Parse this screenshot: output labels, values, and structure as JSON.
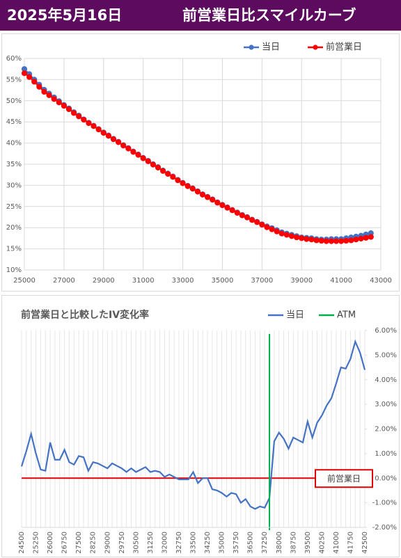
{
  "header": {
    "date": "2025年5月16日",
    "title": "前営業日比スマイルカーブ"
  },
  "chart_data": [
    {
      "type": "line",
      "x": [
        25000,
        25250,
        25500,
        25750,
        26000,
        26250,
        26500,
        26750,
        27000,
        27250,
        27500,
        27750,
        28000,
        28250,
        28500,
        28750,
        29000,
        29250,
        29500,
        29750,
        30000,
        30250,
        30500,
        30750,
        31000,
        31250,
        31500,
        31750,
        32000,
        32250,
        32500,
        32750,
        33000,
        33250,
        33500,
        33750,
        34000,
        34250,
        34500,
        34750,
        35000,
        35250,
        35500,
        35750,
        36000,
        36250,
        36500,
        36750,
        37000,
        37250,
        37500,
        37750,
        38000,
        38250,
        38500,
        38750,
        39000,
        39250,
        39500,
        39750,
        40000,
        40250,
        40500,
        40750,
        41000,
        41250,
        41500,
        41750,
        42000,
        42250,
        42500
      ],
      "series": [
        {
          "name": "当日",
          "color": "#4472c4",
          "values": [
            57.5,
            56.3,
            55.0,
            53.8,
            52.6,
            51.7,
            50.8,
            49.9,
            49.0,
            48.2,
            47.3,
            46.5,
            45.6,
            44.8,
            44.1,
            43.3,
            42.5,
            41.8,
            41.0,
            40.3,
            39.5,
            38.8,
            38.0,
            37.3,
            36.5,
            35.8,
            35.0,
            34.3,
            33.5,
            32.8,
            32.1,
            31.3,
            30.6,
            29.9,
            29.3,
            28.6,
            27.9,
            27.3,
            26.7,
            26.0,
            25.4,
            24.8,
            24.2,
            23.6,
            23.0,
            22.5,
            21.9,
            21.4,
            20.8,
            20.3,
            19.9,
            19.4,
            18.9,
            18.6,
            18.3,
            18.0,
            17.7,
            17.6,
            17.5,
            17.3,
            17.2,
            17.2,
            17.3,
            17.3,
            17.3,
            17.5,
            17.7,
            17.9,
            18.1,
            18.4,
            18.7
          ]
        },
        {
          "name": "前営業日",
          "color": "#ff0000",
          "values": [
            56.5,
            55.6,
            54.5,
            53.3,
            52.1,
            51.3,
            50.4,
            49.6,
            48.8,
            48.0,
            47.1,
            46.3,
            45.5,
            44.7,
            44.0,
            43.2,
            42.4,
            41.7,
            40.9,
            40.2,
            39.4,
            38.7,
            37.9,
            37.2,
            36.4,
            35.7,
            34.9,
            34.2,
            33.4,
            32.7,
            32.0,
            31.2,
            30.5,
            29.8,
            29.2,
            28.5,
            27.8,
            27.2,
            26.6,
            25.9,
            25.3,
            24.7,
            24.1,
            23.5,
            22.9,
            22.4,
            21.8,
            21.3,
            20.7,
            20.1,
            19.6,
            19.1,
            18.6,
            18.3,
            18.0,
            17.7,
            17.5,
            17.3,
            17.2,
            17.0,
            16.9,
            16.8,
            16.8,
            16.8,
            16.8,
            16.9,
            17.0,
            17.2,
            17.4,
            17.6,
            17.8
          ]
        }
      ],
      "xlim": [
        25000,
        43000
      ],
      "xticks": [
        25000,
        27000,
        29000,
        31000,
        33000,
        35000,
        37000,
        39000,
        41000,
        43000
      ],
      "ylim": [
        10,
        60
      ],
      "yticks": [
        {
          "value": 10,
          "label": "10%"
        },
        {
          "value": 15,
          "label": "15%"
        },
        {
          "value": 20,
          "label": "20%"
        },
        {
          "value": 25,
          "label": "25%"
        },
        {
          "value": 30,
          "label": "30%"
        },
        {
          "value": 35,
          "label": "35%"
        },
        {
          "value": 40,
          "label": "40%"
        },
        {
          "value": 45,
          "label": "45%"
        },
        {
          "value": 50,
          "label": "50%"
        },
        {
          "value": 55,
          "label": "55%"
        },
        {
          "value": 60,
          "label": "60%"
        }
      ],
      "grid": "both",
      "markers": true,
      "legend": "top-right"
    },
    {
      "type": "line",
      "title": "前営業日と比較したIV変化率",
      "x": [
        24500,
        24750,
        25000,
        25250,
        25500,
        25750,
        26000,
        26250,
        26500,
        26750,
        27000,
        27250,
        27500,
        27750,
        28000,
        28250,
        28500,
        28750,
        29000,
        29250,
        29500,
        29750,
        30000,
        30250,
        30500,
        30750,
        31000,
        31250,
        31500,
        31750,
        32000,
        32250,
        32500,
        32750,
        33000,
        33250,
        33500,
        33750,
        34000,
        34250,
        34500,
        34750,
        35000,
        35250,
        35500,
        35750,
        36000,
        36250,
        36500,
        36750,
        37000,
        37250,
        37500,
        37750,
        38000,
        38250,
        38500,
        38750,
        39000,
        39250,
        39500,
        39750,
        40000,
        40250,
        40500,
        40750,
        41000,
        41250,
        41500,
        41750,
        42000,
        42250,
        42500
      ],
      "series": [
        {
          "name": "当日",
          "color": "#4472c4",
          "axis": "y2",
          "values": [
            0.48,
            1.1,
            1.8,
            1.0,
            0.35,
            0.3,
            1.45,
            0.75,
            0.75,
            1.15,
            0.65,
            0.55,
            0.9,
            0.85,
            0.3,
            0.65,
            0.6,
            0.5,
            0.4,
            0.6,
            0.5,
            0.4,
            0.25,
            0.4,
            0.25,
            0.35,
            0.45,
            0.25,
            0.3,
            0.25,
            0.05,
            0.15,
            0.05,
            -0.05,
            -0.05,
            -0.05,
            0.25,
            -0.2,
            0,
            0,
            -0.45,
            -0.5,
            -0.6,
            -0.75,
            -0.6,
            -0.65,
            -1.0,
            -0.85,
            -1.15,
            -1.25,
            -1.15,
            -1.2,
            -0.8,
            1.5,
            1.85,
            1.6,
            1.2,
            1.65,
            1.55,
            1.45,
            2.3,
            1.65,
            2.25,
            2.55,
            2.95,
            3.25,
            3.85,
            4.5,
            4.45,
            4.85,
            5.55,
            5.1,
            4.4
          ]
        }
      ],
      "vline": {
        "name": "ATM",
        "x": 37500,
        "color": "#00b050"
      },
      "reference_line": {
        "value": 0,
        "label": "前営業日",
        "color": "#e00000"
      },
      "xlim": [
        24500,
        42500
      ],
      "xticks": [
        24500,
        25250,
        26000,
        26750,
        27500,
        28250,
        29000,
        29750,
        30500,
        31250,
        32000,
        32750,
        33500,
        34250,
        35000,
        35750,
        36500,
        37250,
        38000,
        38750,
        39500,
        40250,
        41000,
        41750,
        42500
      ],
      "y2lim": [
        -2,
        6
      ],
      "y2ticks": [
        {
          "value": -2,
          "label": "-2.00%"
        },
        {
          "value": -1,
          "label": "-1.00%"
        },
        {
          "value": 0,
          "label": "0.00%"
        },
        {
          "value": 1,
          "label": "1.00%"
        },
        {
          "value": 2,
          "label": "2.00%"
        },
        {
          "value": 3,
          "label": "3.00%"
        },
        {
          "value": 4,
          "label": "4.00%"
        },
        {
          "value": 5,
          "label": "5.00%"
        },
        {
          "value": 6,
          "label": "6.00%"
        }
      ],
      "grid": "x",
      "markers": false,
      "legend": "top-right"
    }
  ]
}
